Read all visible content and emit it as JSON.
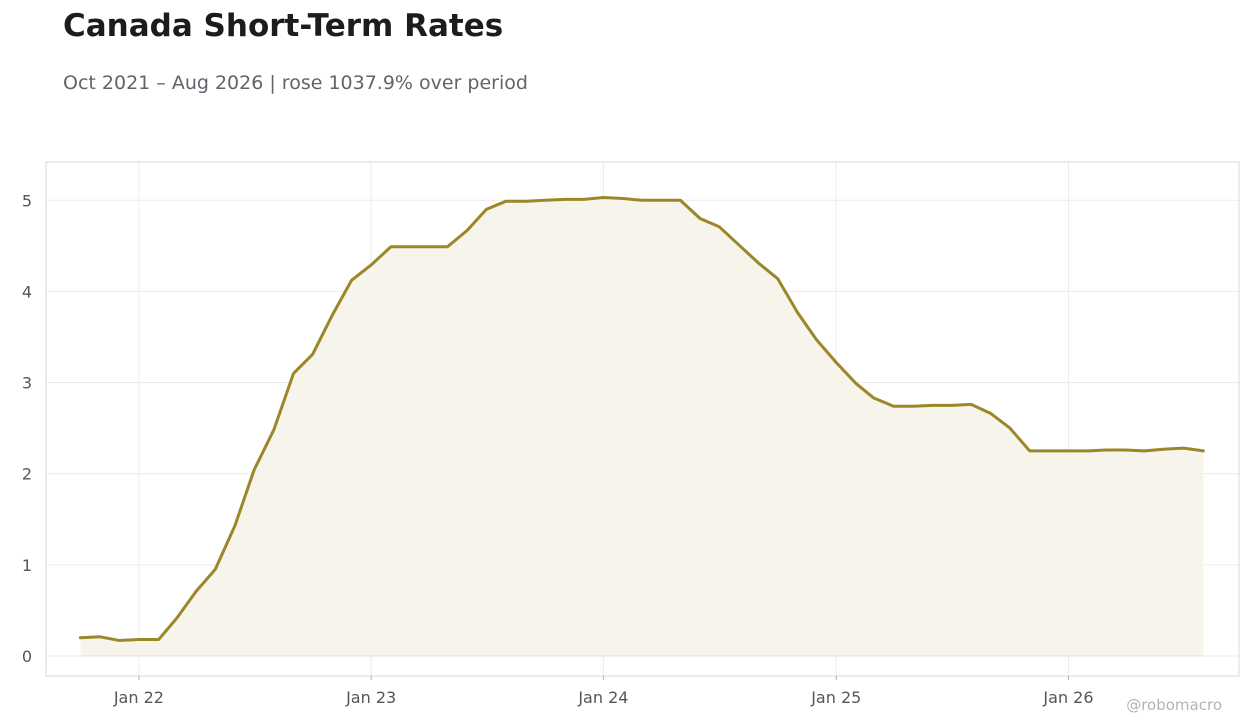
{
  "title": "Canada Short-Term Rates",
  "subtitle": "Oct 2021 – Aug 2026 | rose 1037.9% over period",
  "watermark": "@robomacro",
  "colors": {
    "line": "#9b8628",
    "area_fill": "#f7f4ec",
    "grid": "#ececec",
    "frame": "#d9d9d9",
    "baseline": "#e4e0d3"
  },
  "chart_data": {
    "type": "area",
    "title": "Canada Short-Term Rates",
    "subtitle": "Oct 2021 – Aug 2026 | rose 1037.9% over period",
    "xlabel": "",
    "ylabel": "",
    "grid": true,
    "legend": "none",
    "xlim": [
      "2021-08-08",
      "2026-09-26"
    ],
    "ylim": [
      -0.22,
      5.42
    ],
    "x_ticks": [
      {
        "date": "2022-01-01",
        "label": "Jan 22"
      },
      {
        "date": "2023-01-01",
        "label": "Jan 23"
      },
      {
        "date": "2024-01-01",
        "label": "Jan 24"
      },
      {
        "date": "2025-01-01",
        "label": "Jan 25"
      },
      {
        "date": "2026-01-01",
        "label": "Jan 26"
      }
    ],
    "y_ticks": [
      0,
      1,
      2,
      3,
      4,
      5
    ],
    "series": [
      {
        "x": [
          "2021-10-01",
          "2021-11-01",
          "2021-12-01",
          "2022-01-01",
          "2022-02-01",
          "2022-03-01",
          "2022-04-01",
          "2022-05-01",
          "2022-06-01",
          "2022-07-01",
          "2022-08-01",
          "2022-09-01",
          "2022-10-01",
          "2022-11-01",
          "2022-12-01",
          "2023-01-01",
          "2023-02-01",
          "2023-03-01",
          "2023-04-01",
          "2023-05-01",
          "2023-06-01",
          "2023-07-01",
          "2023-08-01",
          "2023-09-01",
          "2023-10-01",
          "2023-11-01",
          "2023-12-01",
          "2024-01-01",
          "2024-02-01",
          "2024-03-01",
          "2024-04-01",
          "2024-05-01",
          "2024-06-01",
          "2024-07-01",
          "2024-08-01",
          "2024-09-01",
          "2024-10-01",
          "2024-11-01",
          "2024-12-01",
          "2025-01-01",
          "2025-02-01",
          "2025-03-01",
          "2025-04-01",
          "2025-05-01",
          "2025-06-01",
          "2025-07-01",
          "2025-08-01",
          "2025-09-01",
          "2025-10-01",
          "2025-11-01",
          "2025-12-01",
          "2026-01-01",
          "2026-02-01",
          "2026-03-01",
          "2026-04-01",
          "2026-05-01",
          "2026-06-01",
          "2026-07-01",
          "2026-08-01"
        ],
        "y": [
          0.2,
          0.21,
          0.17,
          0.18,
          0.18,
          0.41,
          0.71,
          0.95,
          1.43,
          2.04,
          2.48,
          3.1,
          3.31,
          3.74,
          4.12,
          4.29,
          4.49,
          4.49,
          4.49,
          4.49,
          4.67,
          4.9,
          4.99,
          4.99,
          5.0,
          5.01,
          5.01,
          5.03,
          5.02,
          5.0,
          5.0,
          5.0,
          4.8,
          4.71,
          4.51,
          4.31,
          4.14,
          3.77,
          3.47,
          3.22,
          2.99,
          2.83,
          2.74,
          2.74,
          2.75,
          2.75,
          2.76,
          2.66,
          2.5,
          2.25,
          2.25,
          2.25,
          2.25,
          2.26,
          2.26,
          2.25,
          2.27,
          2.28,
          2.25
        ]
      }
    ]
  }
}
